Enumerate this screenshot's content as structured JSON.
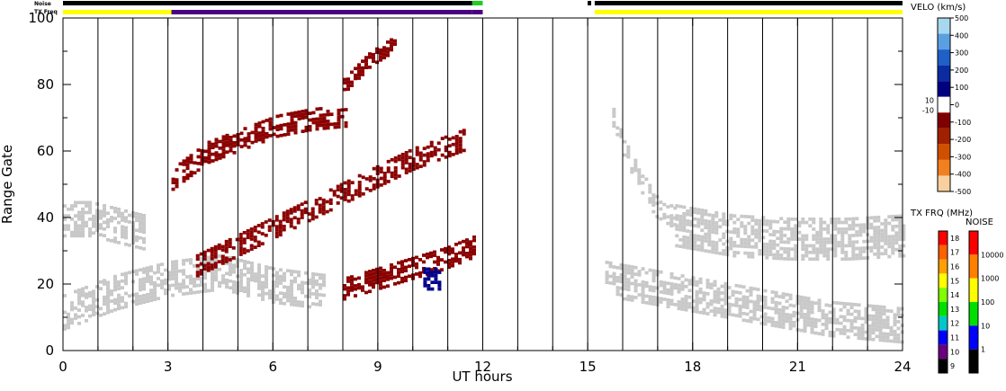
{
  "chart_data": {
    "type": "heatmap",
    "xlabel": "UT hours",
    "ylabel": "Range Gate",
    "xlim": [
      0,
      24
    ],
    "ylim": [
      0,
      100
    ],
    "x_ticks": [
      0,
      3,
      6,
      9,
      12,
      15,
      18,
      21,
      24
    ],
    "y_ticks": [
      0,
      20,
      40,
      60,
      80,
      100
    ],
    "x_minor_ticks": [
      1,
      2,
      4,
      5,
      7,
      8,
      10,
      11,
      13,
      14,
      16,
      17,
      19,
      20,
      22,
      23
    ],
    "y_minor_ticks": [
      10,
      30,
      50,
      70,
      90
    ],
    "scan_boundaries_hours": [
      1,
      2,
      3,
      4,
      5,
      6,
      7,
      8,
      9,
      10,
      11,
      12,
      13,
      14,
      15,
      16,
      17,
      18,
      19,
      20,
      21,
      22,
      23
    ],
    "data_gap_hours": [
      12,
      15.1
    ],
    "header_bars": {
      "noise_label": "Noise",
      "txfreq_label": "TX Freq",
      "noise_segments": [
        {
          "from": 0,
          "to": 11.7,
          "color": "#000000"
        },
        {
          "from": 11.7,
          "to": 12.0,
          "color": "#22cc22"
        },
        {
          "from": 15.0,
          "to": 15.1,
          "color": "#000000"
        },
        {
          "from": 15.2,
          "to": 24,
          "color": "#000000"
        }
      ],
      "txfreq_segments": [
        {
          "from": 0,
          "to": 3.1,
          "color": "#ffff00"
        },
        {
          "from": 3.1,
          "to": 11.7,
          "color": "#4b0082"
        },
        {
          "from": 11.7,
          "to": 12.0,
          "color": "#4b0082"
        },
        {
          "from": 15.2,
          "to": 24,
          "color": "#ffff00"
        }
      ]
    },
    "backscatter_bands": [
      {
        "class": "ground",
        "color": "#c8c8c8",
        "from_hour": 0,
        "to_hour": 2.3,
        "center_gate": [
          40,
          40,
          38,
          36
        ],
        "half_width": 5
      },
      {
        "class": "ground",
        "color": "#c8c8c8",
        "from_hour": 0,
        "to_hour": 7.5,
        "center_gate": [
          12,
          18,
          22,
          24,
          20,
          18
        ],
        "half_width": 5
      },
      {
        "class": "ionospheric_negative",
        "color": "#8b0000",
        "from_hour": 3.1,
        "to_hour": 8.1,
        "center_gate": [
          52,
          60,
          64,
          68,
          70,
          71
        ],
        "half_width": 3
      },
      {
        "class": "ionospheric_negative",
        "color": "#8b0000",
        "from_hour": 3.8,
        "to_hour": 11.5,
        "center_gate": [
          26,
          34,
          42,
          50,
          58,
          64
        ],
        "half_width": 3
      },
      {
        "class": "ionospheric_negative",
        "color": "#8b0000",
        "from_hour": 8.0,
        "to_hour": 11.8,
        "center_gate": [
          19,
          22,
          25,
          28,
          32
        ],
        "half_width": 3
      },
      {
        "class": "ionospheric_negative",
        "color": "#8b0000",
        "from_hour": 8.0,
        "to_hour": 9.5,
        "center_gate": [
          80,
          88,
          93
        ],
        "half_width": 2
      },
      {
        "class": "ionospheric_positive",
        "color": "#00008b",
        "from_hour": 10.3,
        "to_hour": 10.8,
        "center_gate": [
          22,
          22
        ],
        "half_width": 3
      },
      {
        "class": "ground",
        "color": "#c8c8c8",
        "from_hour": 15.7,
        "to_hour": 17.5,
        "center_gate": [
          70,
          55,
          44,
          40
        ],
        "half_width": 3
      },
      {
        "class": "ground",
        "color": "#c8c8c8",
        "from_hour": 17.5,
        "to_hour": 24,
        "center_gate": [
          38,
          35,
          34,
          34,
          35
        ],
        "half_width": 6
      },
      {
        "class": "ground",
        "color": "#c8c8c8",
        "from_hour": 15.5,
        "to_hour": 24,
        "center_gate": [
          22,
          18,
          14,
          10,
          8
        ],
        "half_width": 5
      }
    ],
    "colorbars": {
      "velocity": {
        "title": "VELO (km/s)",
        "tick_labels": [
          "500",
          "400",
          "300",
          "200",
          "100",
          "0",
          "-100",
          "-200",
          "-300",
          "-400",
          "-500"
        ],
        "tick_values": [
          500,
          400,
          300,
          200,
          100,
          0,
          -100,
          -200,
          -300,
          -400,
          -500
        ],
        "ground_scatter_labels": [
          "10",
          "-10"
        ],
        "colors": [
          "#a8d8f0",
          "#5aa0e0",
          "#1e60c8",
          "#0a2ca0",
          "#000080",
          "#ffffff",
          "#800000",
          "#a02000",
          "#d05000",
          "#f08020",
          "#f8d0a0"
        ]
      },
      "tx_freq": {
        "title": "TX FRQ (MHz)",
        "tick_labels": [
          "18",
          "17",
          "16",
          "15",
          "14",
          "13",
          "12",
          "11",
          "10",
          "9"
        ],
        "tick_values": [
          18,
          17,
          16,
          15,
          14,
          13,
          12,
          11,
          10,
          9
        ],
        "colors": [
          "#ff0000",
          "#ff6000",
          "#ffa000",
          "#ffff00",
          "#80ff00",
          "#00e000",
          "#00c8c8",
          "#0000ff",
          "#6a0080",
          "#000000"
        ]
      },
      "noise": {
        "title": "NOISE",
        "tick_labels": [
          "10000",
          "1000",
          "100",
          "10",
          "1"
        ],
        "tick_values": [
          10000,
          1000,
          100,
          10,
          1
        ],
        "colors": [
          "#ff0000",
          "#ff8000",
          "#ffff00",
          "#00e000",
          "#0000ff",
          "#000000"
        ]
      }
    }
  }
}
